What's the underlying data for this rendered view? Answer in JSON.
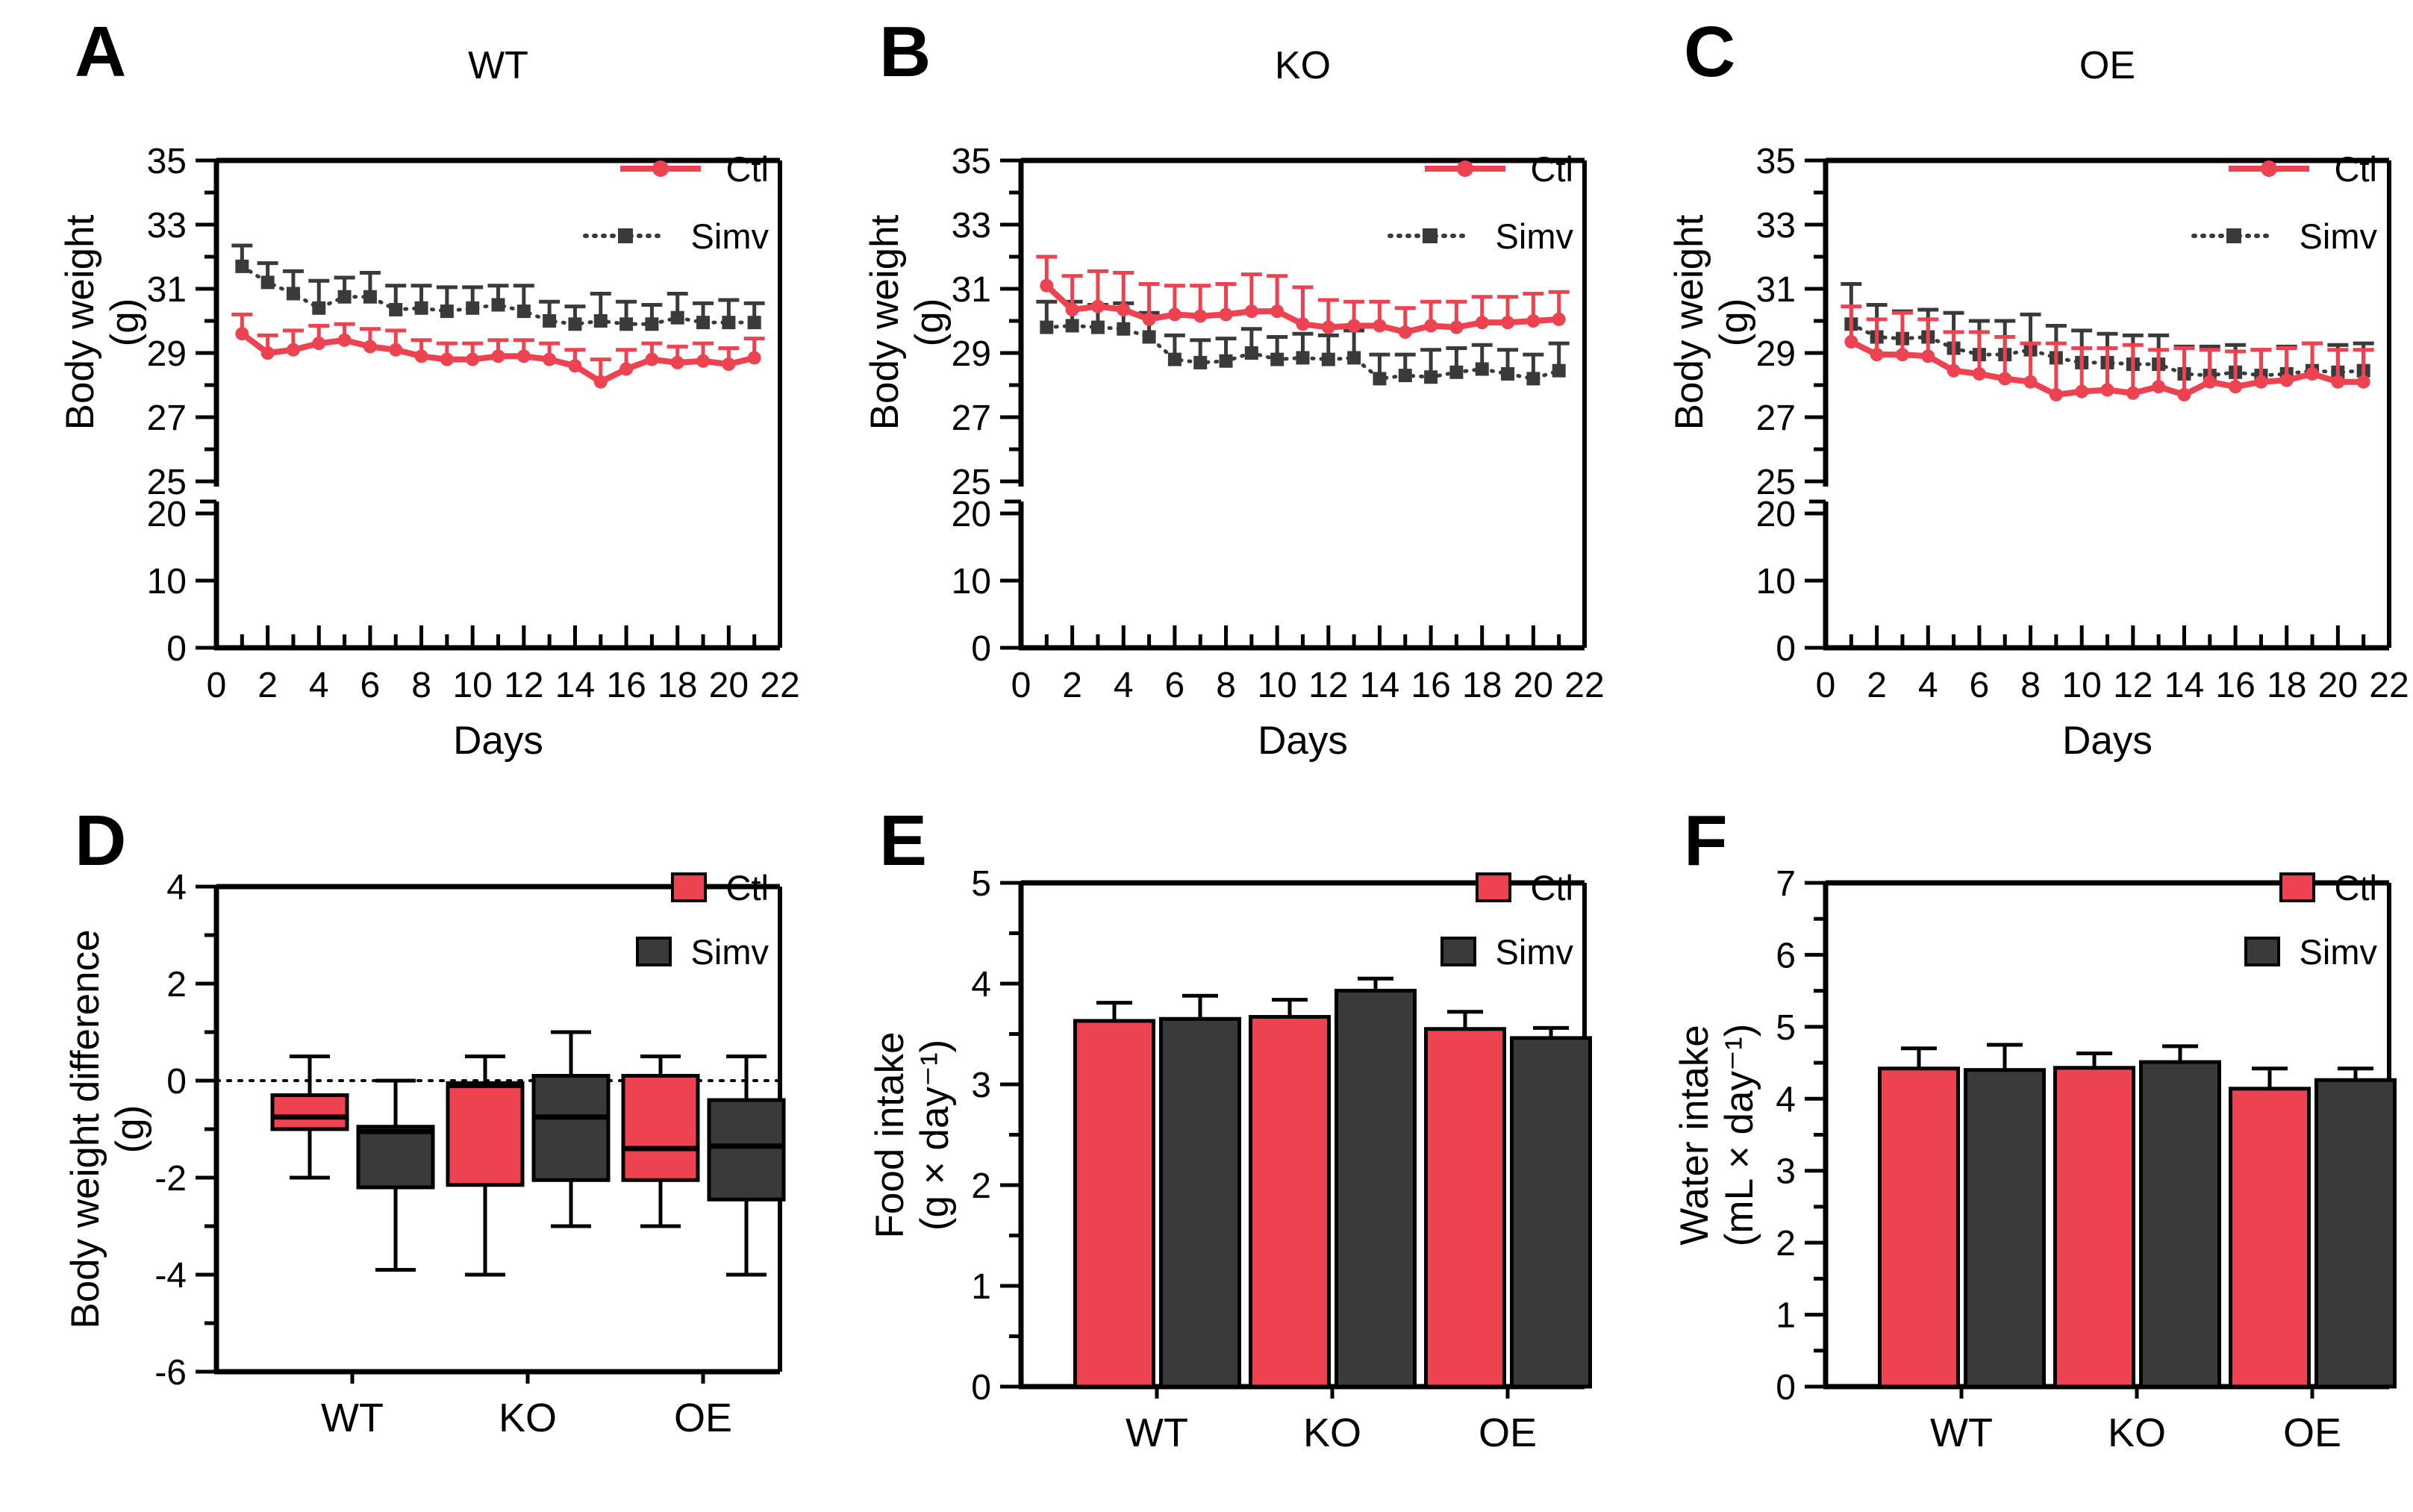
{
  "ui": {
    "background": "#ffffff",
    "axis_color": "#000000",
    "legend": {
      "ctl_label": "Ctl",
      "simv_label": "Simv"
    }
  },
  "chart_data": [
    {
      "id": "A",
      "type": "line",
      "title": "WT",
      "xlabel": "Days",
      "ylabel_lines": [
        "Body weight",
        "(g)"
      ],
      "legend": [
        "Ctl",
        "Simv"
      ],
      "x_axis": {
        "min": 0,
        "max": 22,
        "label_step": 2,
        "minor_step": 1
      },
      "y_axis": {
        "broken": true,
        "upper": {
          "min": 25,
          "max": 35,
          "label_step": 2,
          "minor_step": 1,
          "labels": [
            25,
            27,
            29,
            31,
            33,
            35
          ]
        },
        "lower": {
          "ticks": [
            0,
            10,
            20
          ]
        }
      },
      "x_days": [
        1,
        2,
        3,
        4,
        5,
        6,
        7,
        8,
        9,
        10,
        11,
        12,
        13,
        14,
        15,
        16,
        17,
        18,
        19,
        20,
        21
      ],
      "series": [
        {
          "name": "Ctl",
          "color": "#ED4350",
          "marker": "circle",
          "line": "solid",
          "values": [
            29.6,
            29.0,
            29.1,
            29.3,
            29.4,
            29.2,
            29.1,
            28.9,
            28.8,
            28.8,
            28.9,
            28.9,
            28.8,
            28.6,
            28.1,
            28.5,
            28.8,
            28.7,
            28.75,
            28.65,
            28.85
          ],
          "err_up": [
            0.6,
            0.55,
            0.6,
            0.55,
            0.5,
            0.55,
            0.6,
            0.5,
            0.5,
            0.5,
            0.5,
            0.5,
            0.5,
            0.5,
            0.7,
            0.6,
            0.5,
            0.5,
            0.55,
            0.5,
            0.6
          ]
        },
        {
          "name": "Simv",
          "color": "#3A3A3A",
          "marker": "square",
          "line": "dotted",
          "values": [
            31.7,
            31.2,
            30.85,
            30.4,
            30.75,
            30.75,
            30.35,
            30.4,
            30.3,
            30.4,
            30.5,
            30.3,
            30.0,
            29.9,
            30.0,
            29.9,
            29.9,
            30.1,
            29.95,
            29.95,
            29.95
          ],
          "err_up": [
            0.65,
            0.6,
            0.7,
            0.85,
            0.6,
            0.75,
            0.75,
            0.7,
            0.75,
            0.65,
            0.6,
            0.8,
            0.6,
            0.55,
            0.85,
            0.7,
            0.6,
            0.75,
            0.6,
            0.7,
            0.6
          ]
        }
      ]
    },
    {
      "id": "B",
      "type": "line",
      "title": "KO",
      "xlabel": "Days",
      "ylabel_lines": [
        "Body weight",
        "(g)"
      ],
      "legend": [
        "Ctl",
        "Simv"
      ],
      "x_axis": {
        "min": 0,
        "max": 22,
        "label_step": 2,
        "minor_step": 1
      },
      "y_axis": {
        "broken": true,
        "upper": {
          "min": 25,
          "max": 35,
          "label_step": 2,
          "minor_step": 1,
          "labels": [
            25,
            27,
            29,
            31,
            33,
            35
          ]
        },
        "lower": {
          "ticks": [
            0,
            10,
            20
          ]
        }
      },
      "x_days": [
        1,
        2,
        3,
        4,
        5,
        6,
        7,
        8,
        9,
        10,
        11,
        12,
        13,
        14,
        15,
        16,
        17,
        18,
        19,
        20,
        21
      ],
      "series": [
        {
          "name": "Ctl",
          "color": "#ED4350",
          "marker": "circle",
          "line": "solid",
          "values": [
            31.1,
            30.35,
            30.45,
            30.35,
            30.05,
            30.2,
            30.15,
            30.2,
            30.3,
            30.3,
            29.9,
            29.8,
            29.85,
            29.85,
            29.65,
            29.85,
            29.8,
            29.95,
            29.95,
            30.0,
            30.05
          ],
          "err_up": [
            0.9,
            1.05,
            1.1,
            1.15,
            1.1,
            0.9,
            0.95,
            0.95,
            1.15,
            1.1,
            1.15,
            0.85,
            0.75,
            0.75,
            0.75,
            0.75,
            0.8,
            0.8,
            0.8,
            0.85,
            0.85
          ]
        },
        {
          "name": "Simv",
          "color": "#3A3A3A",
          "marker": "square",
          "line": "dotted",
          "values": [
            29.8,
            29.85,
            29.8,
            29.75,
            29.5,
            28.8,
            28.7,
            28.75,
            29.0,
            28.8,
            28.85,
            28.8,
            28.85,
            28.2,
            28.3,
            28.25,
            28.4,
            28.5,
            28.35,
            28.2,
            28.45
          ],
          "err_up": [
            0.8,
            0.75,
            0.7,
            0.8,
            0.75,
            0.75,
            0.7,
            0.7,
            0.75,
            0.7,
            0.75,
            0.75,
            0.85,
            0.75,
            0.65,
            0.85,
            0.75,
            0.75,
            0.75,
            0.75,
            0.85
          ]
        }
      ]
    },
    {
      "id": "C",
      "type": "line",
      "title": "OE",
      "xlabel": "Days",
      "ylabel_lines": [
        "Body weight",
        "(g)"
      ],
      "legend": [
        "Ctl",
        "Simv"
      ],
      "x_axis": {
        "min": 0,
        "max": 22,
        "label_step": 2,
        "minor_step": 1
      },
      "y_axis": {
        "broken": true,
        "upper": {
          "min": 25,
          "max": 35,
          "label_step": 2,
          "minor_step": 1,
          "labels": [
            25,
            27,
            29,
            31,
            33,
            35
          ]
        },
        "lower": {
          "ticks": [
            0,
            10,
            20
          ]
        }
      },
      "x_days": [
        1,
        2,
        3,
        4,
        5,
        6,
        7,
        8,
        9,
        10,
        11,
        12,
        13,
        14,
        15,
        16,
        17,
        18,
        19,
        20,
        21
      ],
      "series": [
        {
          "name": "Ctl",
          "color": "#ED4350",
          "marker": "circle",
          "line": "solid",
          "values": [
            29.35,
            28.95,
            28.95,
            28.9,
            28.45,
            28.35,
            28.2,
            28.1,
            27.7,
            27.8,
            27.85,
            27.75,
            27.95,
            27.7,
            28.1,
            27.95,
            28.1,
            28.15,
            28.35,
            28.1,
            28.1
          ],
          "err_up": [
            1.1,
            1.1,
            1.3,
            1.15,
            1.2,
            1.3,
            1.3,
            1.2,
            1.6,
            1.35,
            1.3,
            1.5,
            1.15,
            1.45,
            1.0,
            1.1,
            1.0,
            1.0,
            0.95,
            1.0,
            1.0
          ]
        },
        {
          "name": "Simv",
          "color": "#3A3A3A",
          "marker": "square",
          "line": "dotted",
          "values": [
            29.9,
            29.5,
            29.45,
            29.5,
            29.15,
            28.95,
            28.95,
            29.1,
            28.85,
            28.7,
            28.7,
            28.65,
            28.65,
            28.35,
            28.3,
            28.4,
            28.3,
            28.35,
            28.45,
            28.4,
            28.45
          ],
          "err_up": [
            1.25,
            1.0,
            0.85,
            0.85,
            1.1,
            1.05,
            1.05,
            1.1,
            1.0,
            1.0,
            0.9,
            0.9,
            0.9,
            0.85,
            0.9,
            0.85,
            0.8,
            0.85,
            0.85,
            0.85,
            0.85
          ]
        }
      ]
    },
    {
      "id": "D",
      "type": "box",
      "ylabel_lines": [
        "Body weight difference",
        "(g)"
      ],
      "legend": [
        "Ctl",
        "Simv"
      ],
      "categories": [
        "WT",
        "KO",
        "OE"
      ],
      "y_axis": {
        "min": -6,
        "max": 4,
        "label_step": 2,
        "minor_step": 1,
        "labels": [
          4,
          2,
          0,
          -2,
          -4,
          -6
        ]
      },
      "zero_line": true,
      "series": [
        {
          "name": "Ctl",
          "color": "#ED4350",
          "boxes": [
            {
              "whisker_low": -2.0,
              "q1": -1.0,
              "median": -0.75,
              "q3": -0.3,
              "whisker_high": 0.5
            },
            {
              "whisker_low": -4.0,
              "q1": -2.15,
              "median": -0.1,
              "q3": -0.05,
              "whisker_high": 0.5
            },
            {
              "whisker_low": -3.0,
              "q1": -2.05,
              "median": -1.4,
              "q3": 0.1,
              "whisker_high": 0.5
            }
          ]
        },
        {
          "name": "Simv",
          "color": "#3A3A3A",
          "boxes": [
            {
              "whisker_low": -3.9,
              "q1": -2.2,
              "median": -1.05,
              "q3": -0.95,
              "whisker_high": 0.0
            },
            {
              "whisker_low": -3.0,
              "q1": -2.05,
              "median": -0.75,
              "q3": 0.1,
              "whisker_high": 1.0
            },
            {
              "whisker_low": -4.0,
              "q1": -2.45,
              "median": -1.35,
              "q3": -0.4,
              "whisker_high": 0.5
            }
          ]
        }
      ]
    },
    {
      "id": "E",
      "type": "bar",
      "ylabel_lines": [
        "Food intake",
        "(g × day⁻¹)"
      ],
      "legend": [
        "Ctl",
        "Simv"
      ],
      "categories": [
        "WT",
        "KO",
        "OE"
      ],
      "y_axis": {
        "min": 0,
        "max": 5,
        "label_step": 1,
        "minor_step": 0.5
      },
      "series": [
        {
          "name": "Ctl",
          "color": "#ED4350",
          "values": [
            3.63,
            3.67,
            3.55
          ],
          "err_up": [
            0.18,
            0.17,
            0.17
          ]
        },
        {
          "name": "Simv",
          "color": "#3A3A3A",
          "values": [
            3.65,
            3.93,
            3.46
          ],
          "err_up": [
            0.23,
            0.12,
            0.1
          ]
        }
      ]
    },
    {
      "id": "F",
      "type": "bar",
      "ylabel_lines": [
        "Water intake",
        "(mL × day⁻¹)"
      ],
      "legend": [
        "Ctl",
        "Simv"
      ],
      "categories": [
        "WT",
        "KO",
        "OE"
      ],
      "y_axis": {
        "min": 0,
        "max": 7,
        "label_step": 1,
        "minor_step": 0.5
      },
      "series": [
        {
          "name": "Ctl",
          "color": "#ED4350",
          "values": [
            4.42,
            4.43,
            4.14
          ],
          "err_up": [
            0.28,
            0.2,
            0.28
          ]
        },
        {
          "name": "Simv",
          "color": "#3A3A3A",
          "values": [
            4.4,
            4.51,
            4.26
          ],
          "err_up": [
            0.35,
            0.22,
            0.16
          ]
        }
      ]
    }
  ]
}
